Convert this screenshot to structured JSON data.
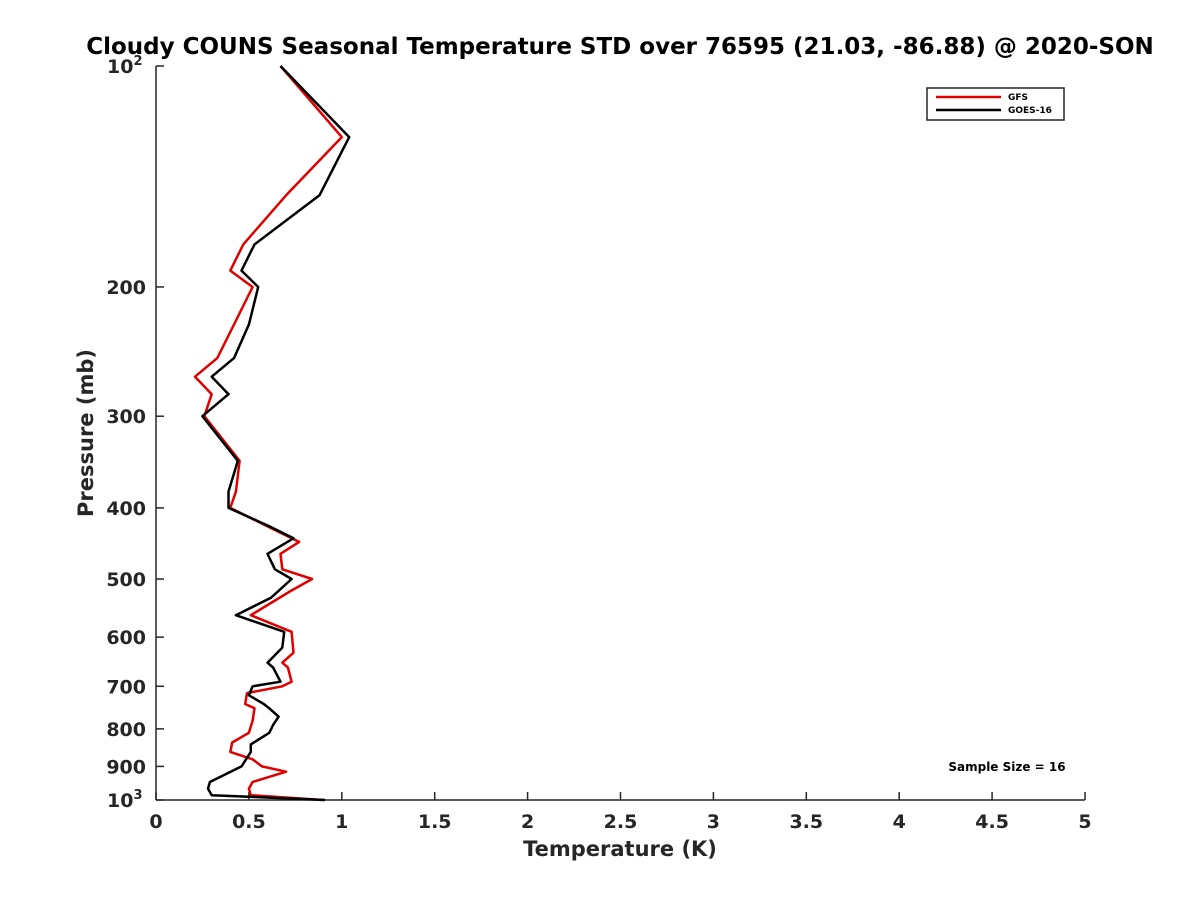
{
  "chart_data": {
    "type": "line",
    "title": "Cloudy COUNS Seasonal Temperature STD over 76595 (21.03, -86.88) @ 2020-SON",
    "xlabel": "Temperature (K)",
    "ylabel": "Pressure (mb)",
    "xlim": [
      0,
      5
    ],
    "ylim": [
      100,
      1000
    ],
    "y_scale": "log",
    "y_direction": "reversed",
    "x_ticks": [
      "0",
      "0.5",
      "1",
      "1.5",
      "2",
      "2.5",
      "3",
      "3.5",
      "4",
      "4.5",
      "5"
    ],
    "y_ticks": [
      {
        "value": 100,
        "base": "10",
        "exp": "2"
      },
      {
        "value": 200,
        "label": "200"
      },
      {
        "value": 300,
        "label": "300"
      },
      {
        "value": 400,
        "label": "400"
      },
      {
        "value": 500,
        "label": "500"
      },
      {
        "value": 600,
        "label": "600"
      },
      {
        "value": 700,
        "label": "700"
      },
      {
        "value": 800,
        "label": "800"
      },
      {
        "value": 900,
        "label": "900"
      },
      {
        "value": 1000,
        "base": "10",
        "exp": "3"
      }
    ],
    "grid": false,
    "legend_position": "top-right",
    "annotation": "Sample Size = 16",
    "series": [
      {
        "name": "GFS",
        "color": "#e00000",
        "points": [
          [
            0.67,
            100
          ],
          [
            1.0,
            125
          ],
          [
            0.7,
            150
          ],
          [
            0.47,
            175
          ],
          [
            0.4,
            190
          ],
          [
            0.52,
            200
          ],
          [
            0.42,
            225
          ],
          [
            0.33,
            250
          ],
          [
            0.21,
            265
          ],
          [
            0.3,
            280
          ],
          [
            0.26,
            300
          ],
          [
            0.45,
            345
          ],
          [
            0.43,
            380
          ],
          [
            0.4,
            400
          ],
          [
            0.61,
            425
          ],
          [
            0.77,
            445
          ],
          [
            0.67,
            462
          ],
          [
            0.68,
            485
          ],
          [
            0.84,
            500
          ],
          [
            0.72,
            520
          ],
          [
            0.51,
            560
          ],
          [
            0.73,
            590
          ],
          [
            0.74,
            630
          ],
          [
            0.68,
            650
          ],
          [
            0.71,
            660
          ],
          [
            0.73,
            690
          ],
          [
            0.68,
            700
          ],
          [
            0.49,
            715
          ],
          [
            0.48,
            740
          ],
          [
            0.53,
            750
          ],
          [
            0.52,
            780
          ],
          [
            0.5,
            810
          ],
          [
            0.41,
            835
          ],
          [
            0.4,
            860
          ],
          [
            0.52,
            880
          ],
          [
            0.57,
            900
          ],
          [
            0.7,
            915
          ],
          [
            0.52,
            945
          ],
          [
            0.5,
            965
          ],
          [
            0.51,
            985
          ],
          [
            0.9,
            1000
          ]
        ]
      },
      {
        "name": "GOES-16",
        "color": "#000000",
        "points": [
          [
            0.67,
            100
          ],
          [
            1.04,
            125
          ],
          [
            0.88,
            150
          ],
          [
            0.53,
            175
          ],
          [
            0.46,
            190
          ],
          [
            0.55,
            200
          ],
          [
            0.5,
            225
          ],
          [
            0.42,
            250
          ],
          [
            0.3,
            265
          ],
          [
            0.39,
            280
          ],
          [
            0.25,
            300
          ],
          [
            0.44,
            345
          ],
          [
            0.39,
            380
          ],
          [
            0.39,
            400
          ],
          [
            0.62,
            425
          ],
          [
            0.74,
            440
          ],
          [
            0.6,
            462
          ],
          [
            0.64,
            485
          ],
          [
            0.73,
            500
          ],
          [
            0.62,
            530
          ],
          [
            0.43,
            560
          ],
          [
            0.69,
            590
          ],
          [
            0.68,
            620
          ],
          [
            0.6,
            650
          ],
          [
            0.63,
            660
          ],
          [
            0.67,
            690
          ],
          [
            0.52,
            700
          ],
          [
            0.5,
            720
          ],
          [
            0.58,
            740
          ],
          [
            0.61,
            750
          ],
          [
            0.66,
            770
          ],
          [
            0.63,
            790
          ],
          [
            0.61,
            810
          ],
          [
            0.51,
            840
          ],
          [
            0.51,
            860
          ],
          [
            0.46,
            900
          ],
          [
            0.29,
            945
          ],
          [
            0.28,
            965
          ],
          [
            0.3,
            985
          ],
          [
            0.91,
            1000
          ]
        ]
      }
    ]
  }
}
